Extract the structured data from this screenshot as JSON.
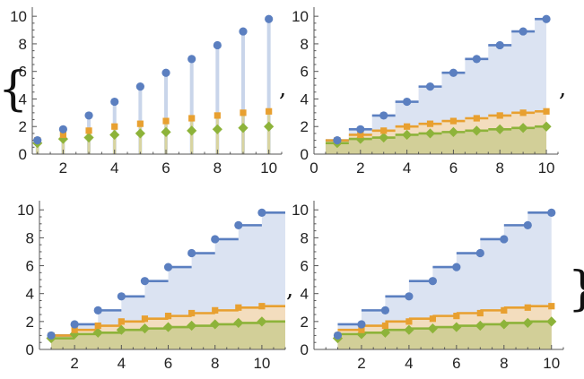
{
  "output": {
    "open_brace": "{",
    "close_brace": "}",
    "separator": ","
  },
  "colors": {
    "series": [
      "#5b7fc0",
      "#e8a030",
      "#8db33a"
    ],
    "fill": [
      "#dbe3f2",
      "#f3ddbe",
      "#d2cf98"
    ],
    "stem": "#c9d5ea",
    "axis": "#555555"
  },
  "chart_data": [
    {
      "type": "stem",
      "xlim": [
        0.8,
        10.5
      ],
      "ylim": [
        0,
        10.4
      ],
      "xticks": [
        2,
        4,
        6,
        8,
        10
      ],
      "yticks": [
        0,
        2,
        4,
        6,
        8,
        10
      ],
      "markers": [
        "circle",
        "square",
        "diamond"
      ],
      "x": [
        1,
        2,
        3,
        4,
        5,
        6,
        7,
        8,
        9,
        10
      ],
      "series": [
        {
          "values": [
            1,
            1.8,
            2.8,
            3.8,
            4.9,
            5.9,
            6.9,
            7.9,
            8.9,
            9.8
          ]
        },
        {
          "values": [
            1,
            1.4,
            1.7,
            2.0,
            2.2,
            2.4,
            2.6,
            2.8,
            3.0,
            3.1
          ]
        },
        {
          "values": [
            0.8,
            1.1,
            1.2,
            1.4,
            1.5,
            1.6,
            1.7,
            1.8,
            1.9,
            2.0
          ]
        }
      ]
    },
    {
      "type": "step-area",
      "step": "center",
      "xlim": [
        0,
        10.5
      ],
      "ylim": [
        0,
        10.4
      ],
      "xticks": [
        0,
        2,
        4,
        6,
        8,
        10
      ],
      "yticks": [
        0,
        2,
        4,
        6,
        8,
        10
      ],
      "markers": [
        "circle",
        "square",
        "diamond"
      ],
      "x": [
        1,
        2,
        3,
        4,
        5,
        6,
        7,
        8,
        9,
        10
      ],
      "series": [
        {
          "values": [
            1,
            1.8,
            2.8,
            3.8,
            4.9,
            5.9,
            6.9,
            7.9,
            8.9,
            9.8
          ]
        },
        {
          "values": [
            1,
            1.4,
            1.7,
            2.0,
            2.2,
            2.4,
            2.6,
            2.8,
            3.0,
            3.1
          ]
        },
        {
          "values": [
            0.8,
            1.1,
            1.2,
            1.4,
            1.5,
            1.6,
            1.7,
            1.8,
            1.9,
            2.0
          ]
        }
      ]
    },
    {
      "type": "step-area",
      "step": "right",
      "xlim": [
        0.5,
        11
      ],
      "ylim": [
        0,
        10.4
      ],
      "xticks": [
        2,
        4,
        6,
        8,
        10
      ],
      "yticks": [
        0,
        2,
        4,
        6,
        8,
        10
      ],
      "markers": [
        "circle",
        "square",
        "diamond"
      ],
      "x": [
        1,
        2,
        3,
        4,
        5,
        6,
        7,
        8,
        9,
        10
      ],
      "series": [
        {
          "values": [
            1,
            1.8,
            2.8,
            3.8,
            4.9,
            5.9,
            6.9,
            7.9,
            8.9,
            9.8
          ]
        },
        {
          "values": [
            1,
            1.4,
            1.7,
            2.0,
            2.2,
            2.4,
            2.6,
            2.8,
            3.0,
            3.1
          ]
        },
        {
          "values": [
            0.8,
            1.1,
            1.2,
            1.4,
            1.5,
            1.6,
            1.7,
            1.8,
            1.9,
            2.0
          ]
        }
      ]
    },
    {
      "type": "step-area",
      "step": "left",
      "xlim": [
        0,
        10.5
      ],
      "ylim": [
        0,
        10.4
      ],
      "xticks": [
        2,
        4,
        6,
        8,
        10
      ],
      "yticks": [
        0,
        2,
        4,
        6,
        8,
        10
      ],
      "markers": [
        "circle",
        "square",
        "diamond"
      ],
      "x": [
        1,
        2,
        3,
        4,
        5,
        6,
        7,
        8,
        9,
        10
      ],
      "series": [
        {
          "values": [
            1,
            1.8,
            2.8,
            3.8,
            4.9,
            5.9,
            6.9,
            7.9,
            8.9,
            9.8
          ]
        },
        {
          "values": [
            1,
            1.4,
            1.7,
            2.0,
            2.2,
            2.4,
            2.6,
            2.8,
            3.0,
            3.1
          ]
        },
        {
          "values": [
            0.8,
            1.1,
            1.2,
            1.4,
            1.5,
            1.6,
            1.7,
            1.8,
            1.9,
            2.0
          ]
        }
      ]
    }
  ]
}
